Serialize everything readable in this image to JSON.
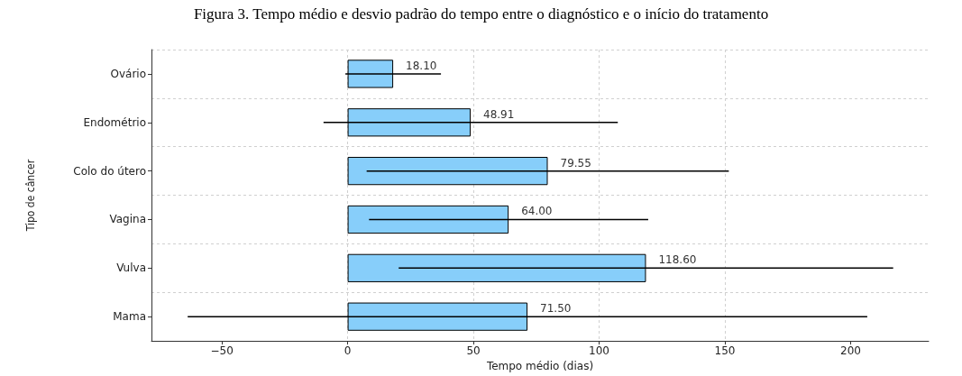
{
  "chart_data": {
    "type": "bar",
    "orientation": "horizontal",
    "title": "Figura 3. Tempo médio e desvio padrão do tempo entre o diagnóstico e o início do tratamento",
    "xlabel": "Tempo médio (dias)",
    "ylabel": "Tipo de câncer",
    "categories": [
      "Ovário",
      "Endométrio",
      "Colo do útero",
      "Vagina",
      "Vulva",
      "Mama"
    ],
    "values": [
      18.1,
      48.91,
      79.55,
      64.0,
      118.6,
      71.5
    ],
    "value_labels": [
      "18.10",
      "48.91",
      "79.55",
      "64.00",
      "118.60",
      "71.50"
    ],
    "errors": [
      19,
      58.5,
      72,
      55.5,
      98.3,
      135.1
    ],
    "color": "#87cefa",
    "xlim": [
      -78,
      231
    ],
    "xticks": [
      {
        "value": -50,
        "label": "−50"
      },
      0,
      50,
      100,
      150,
      200
    ],
    "grid": true
  }
}
